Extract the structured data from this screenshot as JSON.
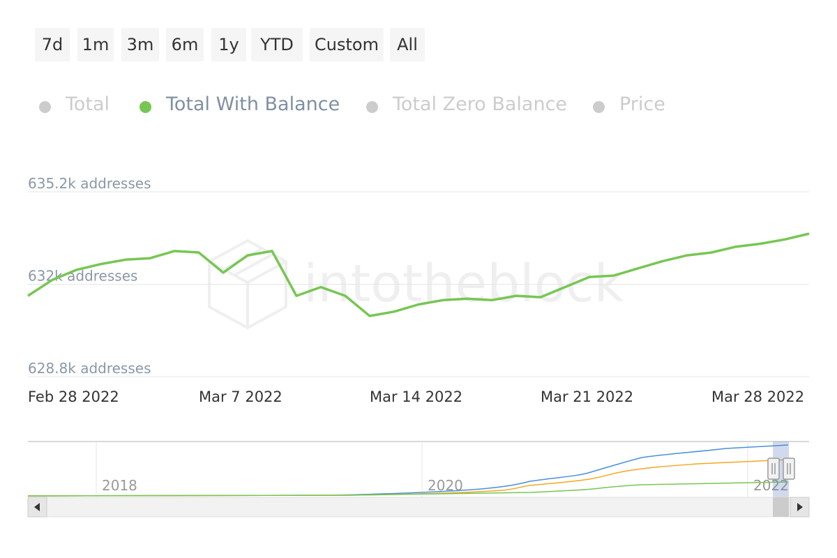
{
  "range_buttons": [
    "7d",
    "1m",
    "3m",
    "6m",
    "1y",
    "YTD",
    "Custom",
    "All"
  ],
  "legend": [
    {
      "label": "Total",
      "color": "#4a90d9",
      "visible": false
    },
    {
      "label": "Total With Balance",
      "color": "#77c653",
      "visible": true
    },
    {
      "label": "Total Zero Balance",
      "color": "#f5a623",
      "visible": false
    },
    {
      "label": "Price",
      "color": "#999999",
      "visible": false
    }
  ],
  "watermark": "intotheblock",
  "chart_data": {
    "type": "line",
    "ylim": [
      628.8,
      635.2
    ],
    "yticks": [
      {
        "value": 635.2,
        "label": "635.2k addresses"
      },
      {
        "value": 632.0,
        "label": "632k addresses"
      },
      {
        "value": 628.8,
        "label": "628.8k addresses"
      }
    ],
    "xticks": [
      {
        "date": "2022-02-28",
        "label": "Feb 28 2022"
      },
      {
        "date": "2022-03-07",
        "label": "Mar 7 2022"
      },
      {
        "date": "2022-03-14",
        "label": "Mar 14 2022"
      },
      {
        "date": "2022-03-21",
        "label": "Mar 21 2022"
      },
      {
        "date": "2022-03-28",
        "label": "Mar 28 2022"
      }
    ],
    "x_range": [
      "2022-02-28",
      "2022-04-01"
    ],
    "series": [
      {
        "name": "Total With Balance",
        "color": "#77c653",
        "x": [
          "2022-02-28",
          "2022-03-01",
          "2022-03-02",
          "2022-03-03",
          "2022-03-04",
          "2022-03-05",
          "2022-03-06",
          "2022-03-07",
          "2022-03-08",
          "2022-03-09",
          "2022-03-10",
          "2022-03-11",
          "2022-03-12",
          "2022-03-13",
          "2022-03-14",
          "2022-03-15",
          "2022-03-16",
          "2022-03-17",
          "2022-03-18",
          "2022-03-19",
          "2022-03-20",
          "2022-03-21",
          "2022-03-22",
          "2022-03-23",
          "2022-03-24",
          "2022-03-25",
          "2022-03-26",
          "2022-03-27",
          "2022-03-28",
          "2022-03-29",
          "2022-03-30",
          "2022-03-31",
          "2022-04-01"
        ],
        "values": [
          631.6,
          632.15,
          632.5,
          632.7,
          632.85,
          632.9,
          633.15,
          633.1,
          632.4,
          633.0,
          633.15,
          631.6,
          631.9,
          631.6,
          630.9,
          631.05,
          631.3,
          631.45,
          631.5,
          631.45,
          631.6,
          631.55,
          631.9,
          632.25,
          632.3,
          632.55,
          632.8,
          633.0,
          633.1,
          633.3,
          633.4,
          633.55,
          633.75
        ]
      }
    ],
    "navigator": {
      "xticks": [
        "2018",
        "2020",
        "2022"
      ],
      "series": [
        {
          "name": "Total",
          "color": "#4a90d9"
        },
        {
          "name": "Total Zero Balance",
          "color": "#f5a623"
        },
        {
          "name": "Total With Balance",
          "color": "#77c653"
        }
      ]
    }
  }
}
